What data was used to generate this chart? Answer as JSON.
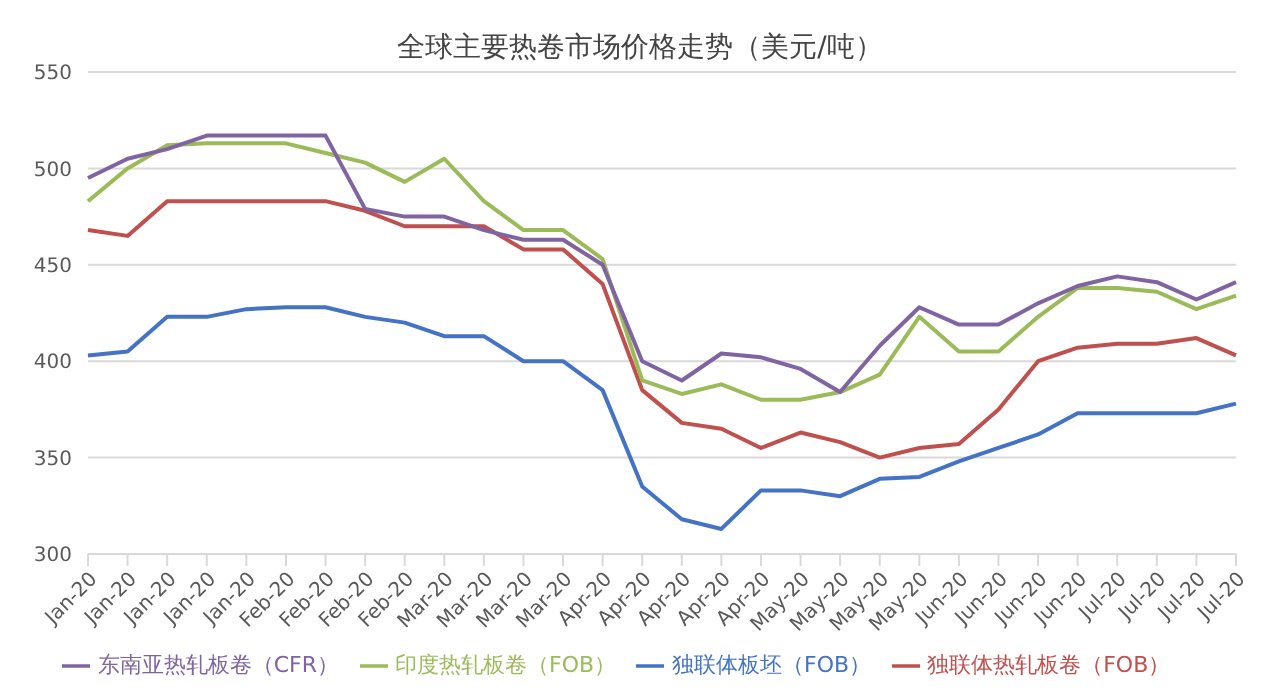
{
  "chart_data": {
    "type": "line",
    "title": "全球主要热卷市场价格走势（美元/吨）",
    "categories": [
      "Jan-20",
      "Jan-20",
      "Jan-20",
      "Jan-20",
      "Jan-20",
      "Feb-20",
      "Feb-20",
      "Feb-20",
      "Feb-20",
      "Mar-20",
      "Mar-20",
      "Mar-20",
      "Mar-20",
      "Apr-20",
      "Apr-20",
      "Apr-20",
      "Apr-20",
      "Apr-20",
      "May-20",
      "May-20",
      "May-20",
      "May-20",
      "Jun-20",
      "Jun-20",
      "Jun-20",
      "Jun-20",
      "Jul-20",
      "Jul-20",
      "Jul-20",
      "Jul-20"
    ],
    "series": [
      {
        "name": "独联体板坯（FOB）",
        "color": "#4472c4",
        "values": [
          403,
          405,
          423,
          423,
          427,
          428,
          428,
          423,
          420,
          413,
          413,
          400,
          400,
          385,
          335,
          318,
          313,
          333,
          333,
          330,
          339,
          340,
          348,
          355,
          362,
          373,
          373,
          373,
          373,
          378
        ]
      },
      {
        "name": "独联体热轧板卷（FOB）",
        "color": "#c0504d",
        "values": [
          468,
          465,
          483,
          483,
          483,
          483,
          483,
          478,
          470,
          470,
          470,
          458,
          458,
          440,
          385,
          368,
          365,
          355,
          363,
          358,
          350,
          355,
          357,
          375,
          400,
          407,
          409,
          409,
          412,
          403
        ]
      },
      {
        "name": "印度热轧板卷（FOB）",
        "color": "#9bbb59",
        "values": [
          483,
          500,
          512,
          513,
          513,
          513,
          508,
          503,
          493,
          505,
          483,
          468,
          468,
          453,
          390,
          383,
          388,
          380,
          380,
          384,
          393,
          423,
          405,
          405,
          423,
          438,
          438,
          436,
          427,
          434
        ]
      },
      {
        "name": "东南亚热轧板卷（CFR）",
        "color": "#8064a2",
        "values": [
          495,
          505,
          510,
          517,
          517,
          517,
          517,
          479,
          475,
          475,
          468,
          463,
          463,
          450,
          400,
          390,
          404,
          402,
          396,
          384,
          408,
          428,
          419,
          419,
          430,
          439,
          444,
          441,
          432,
          441
        ]
      }
    ],
    "ylim": [
      300,
      550
    ],
    "yticks": [
      300,
      350,
      400,
      450,
      500,
      550
    ],
    "grid": "y",
    "legend": "bottom",
    "marker": "none",
    "line_style": "solid"
  }
}
